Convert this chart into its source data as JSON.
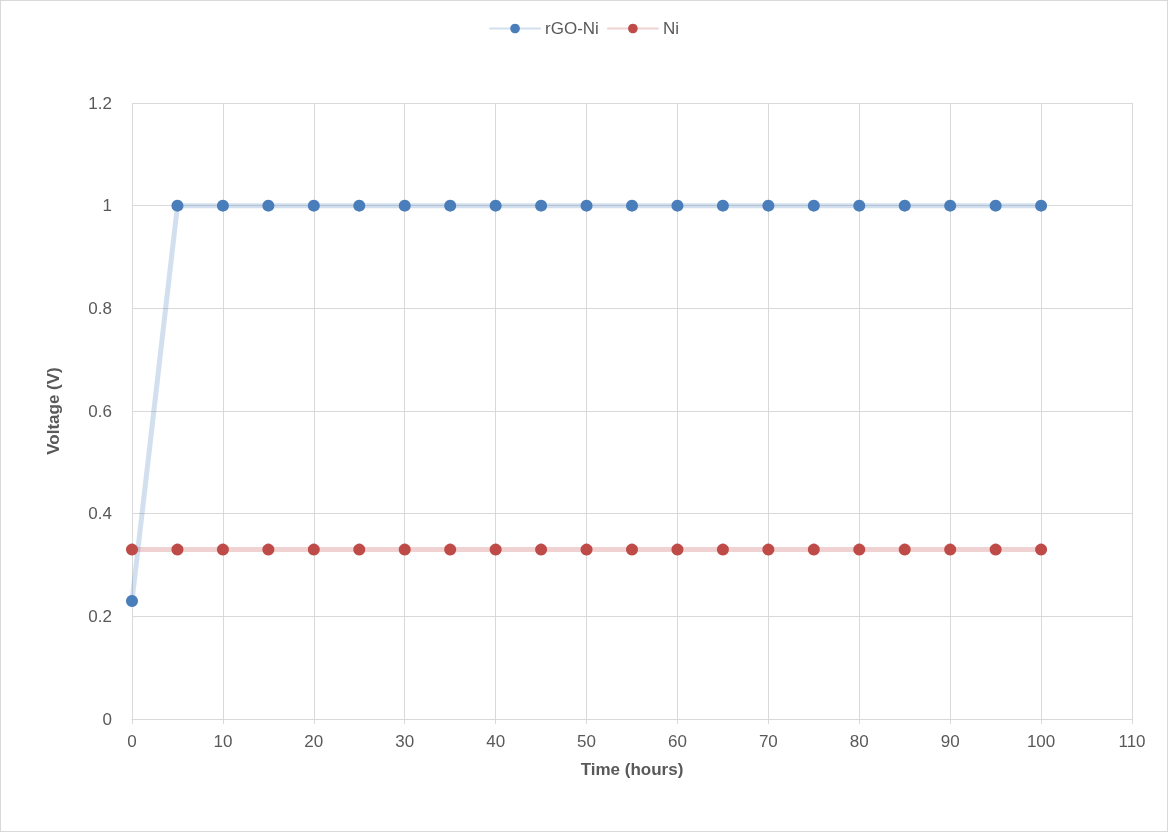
{
  "chart_data": {
    "type": "line",
    "xlabel": "Time (hours)",
    "ylabel": "Voltage (V)",
    "x": [
      0,
      5,
      10,
      15,
      20,
      25,
      30,
      35,
      40,
      45,
      50,
      55,
      60,
      65,
      70,
      75,
      80,
      85,
      90,
      95,
      100
    ],
    "series": [
      {
        "name": "rGO-Ni",
        "color": "#4a7ebb",
        "values": [
          0.23,
          1,
          1,
          1,
          1,
          1,
          1,
          1,
          1,
          1,
          1,
          1,
          1,
          1,
          1,
          1,
          1,
          1,
          1,
          1,
          1
        ]
      },
      {
        "name": "Ni",
        "color": "#be4b48",
        "values": [
          0.33,
          0.33,
          0.33,
          0.33,
          0.33,
          0.33,
          0.33,
          0.33,
          0.33,
          0.33,
          0.33,
          0.33,
          0.33,
          0.33,
          0.33,
          0.33,
          0.33,
          0.33,
          0.33,
          0.33,
          0.33
        ]
      }
    ],
    "xlim": [
      0,
      110
    ],
    "xticks": [
      0,
      10,
      20,
      30,
      40,
      50,
      60,
      70,
      80,
      90,
      100,
      110
    ],
    "ylim": [
      0,
      1.2
    ],
    "yticks": [
      0,
      0.2,
      0.4,
      0.6,
      0.8,
      1,
      1.2
    ],
    "grid": true,
    "legend": "top",
    "marker": "circle",
    "line_style": "solid"
  }
}
